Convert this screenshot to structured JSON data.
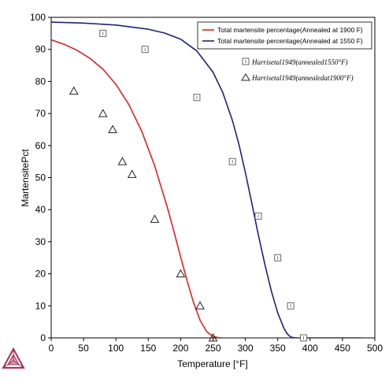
{
  "chart_data": {
    "type": "line",
    "xlabel": "Temperature [°F]",
    "ylabel": "MartensitePct",
    "xlim": [
      0,
      500
    ],
    "ylim": [
      0,
      100
    ],
    "x_ticks": [
      "0",
      "50",
      "100",
      "150",
      "200",
      "250",
      "300",
      "350",
      "400",
      "450",
      "500"
    ],
    "y_ticks": [
      "0",
      "10",
      "20",
      "30",
      "40",
      "50",
      "60",
      "70",
      "80",
      "90",
      "100"
    ],
    "grid": false,
    "legend_position": "top-right",
    "series": [
      {
        "name": "Total martensite percentage(Annealed at 1900 F)",
        "kind": "line",
        "color": "#e0202a",
        "x": [
          0,
          20,
          40,
          60,
          80,
          100,
          120,
          140,
          160,
          180,
          190,
          200,
          210,
          220,
          230,
          240,
          250,
          260,
          265,
          270,
          280,
          300,
          380
        ],
        "y": [
          93,
          91.6,
          89.7,
          87.2,
          83.8,
          79.1,
          72.8,
          64.4,
          53.6,
          40.3,
          32.9,
          25.2,
          17.8,
          11.0,
          5.5,
          2.0,
          0.4,
          0.05,
          0,
          0,
          0,
          0,
          0
        ]
      },
      {
        "name": "Total martensite percentage(Annealed at 1550 F)",
        "kind": "line",
        "color": "#1a237e",
        "x": [
          0,
          50,
          100,
          150,
          175,
          200,
          225,
          250,
          265,
          280,
          290,
          300,
          310,
          320,
          330,
          340,
          350,
          360,
          365,
          370,
          375,
          380,
          480
        ],
        "y": [
          98.5,
          98.2,
          97.6,
          96.3,
          95.1,
          93.2,
          89.5,
          82.9,
          76.6,
          67.8,
          60.4,
          51.6,
          42.0,
          32.2,
          23.0,
          14.7,
          7.8,
          2.8,
          1.2,
          0.3,
          0.05,
          0,
          0
        ]
      },
      {
        "name": "Harrisetal1949(annealed1550°F)",
        "kind": "scatter",
        "marker": "square",
        "color": "#555555",
        "x": [
          80,
          145,
          225,
          280,
          320,
          350,
          370,
          390
        ],
        "y": [
          95,
          90,
          75,
          55,
          38,
          25,
          10,
          0
        ]
      },
      {
        "name": "Harrisetal1949(annealedat1900°F)",
        "kind": "scatter",
        "marker": "triangle",
        "color": "#222222",
        "x": [
          35,
          80,
          95,
          110,
          125,
          160,
          200,
          230,
          250
        ],
        "y": [
          77,
          70,
          65,
          55,
          51,
          37,
          20,
          10,
          0
        ]
      }
    ]
  },
  "logo": {
    "name": "thermo-calc-logo-icon",
    "color": "#a8325a"
  }
}
